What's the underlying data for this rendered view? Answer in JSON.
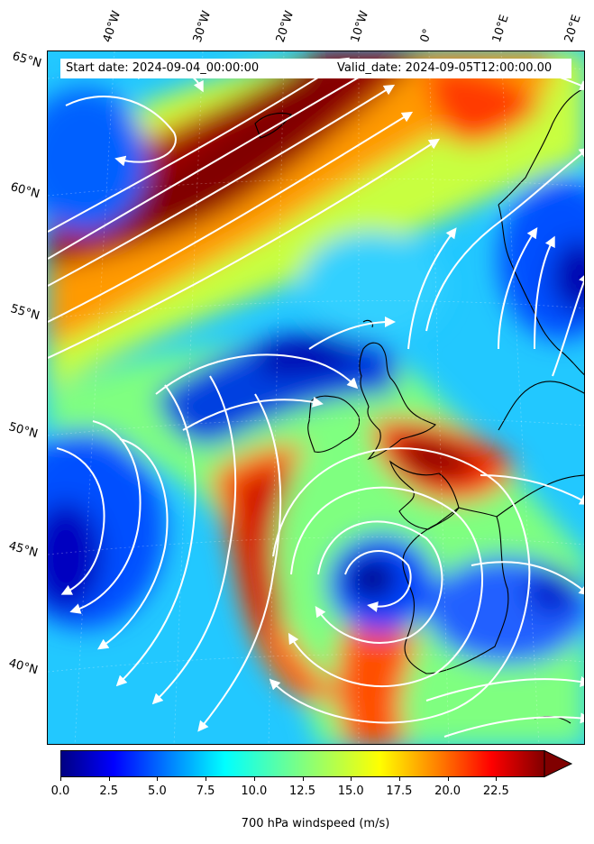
{
  "map": {
    "start_date_text": "Start date: 2024-09-04_00:00:00",
    "valid_date_text": "Valid_date: 2024-09-05T12:00:00.00",
    "longitude_labels": [
      "40°W",
      "30°W",
      "20°W",
      "10°W",
      "0°",
      "10°E",
      "20°E"
    ],
    "latitude_labels": [
      "65°N",
      "60°N",
      "55°N",
      "50°N",
      "45°N",
      "40°N"
    ],
    "field": "700 hPa windspeed",
    "overlay": "streamlines"
  },
  "colorbar": {
    "label": "700 hPa windspeed (m/s)",
    "ticks": [
      "0.0",
      "2.5",
      "5.0",
      "7.5",
      "10.0",
      "12.5",
      "15.0",
      "17.5",
      "20.0",
      "22.5"
    ],
    "min": 0,
    "max": 25,
    "extend": "max",
    "colormap": "jet",
    "colors": [
      "#000080",
      "#0000ff",
      "#0080ff",
      "#00ffff",
      "#80ff80",
      "#ffff00",
      "#ff8000",
      "#ff0000",
      "#800000"
    ]
  }
}
